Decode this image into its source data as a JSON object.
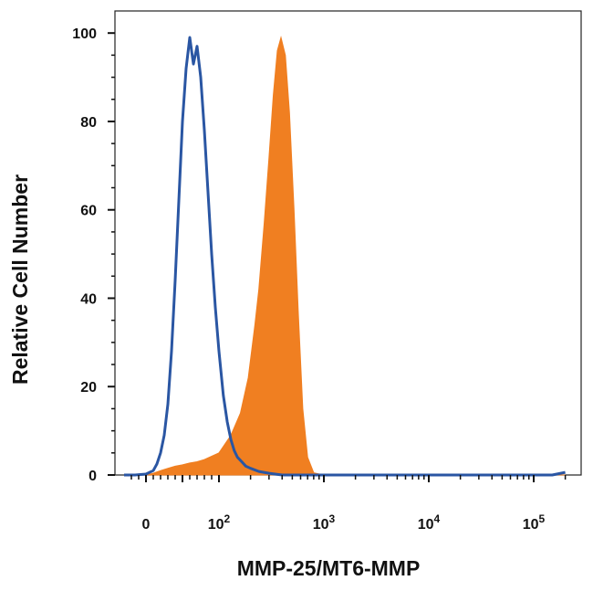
{
  "chart_data": {
    "type": "area",
    "title": "",
    "xlabel": "MMP-25/MT6-MMP",
    "ylabel": "Relative Cell Number",
    "x_scale": "biexponential",
    "xlim": [
      -30,
      200000
    ],
    "ylim": [
      0,
      105
    ],
    "y_ticks": [
      0,
      20,
      40,
      60,
      80,
      100
    ],
    "x_ticks": [
      {
        "value": 0,
        "label": "0",
        "exp": ""
      },
      {
        "value": 100,
        "label": "10",
        "exp": "2"
      },
      {
        "value": 1000,
        "label": "10",
        "exp": "3"
      },
      {
        "value": 10000,
        "label": "10",
        "exp": "4"
      },
      {
        "value": 100000,
        "label": "10",
        "exp": "5"
      }
    ],
    "grid": false,
    "legend": "none",
    "series": [
      {
        "style": "filled",
        "color": "#f07f21",
        "x": [
          -30,
          0,
          10,
          20,
          30,
          40,
          50,
          60,
          70,
          80,
          100,
          130,
          160,
          190,
          220,
          240,
          270,
          300,
          330,
          360,
          390,
          430,
          470,
          520,
          570,
          630,
          700,
          800,
          1000,
          10000,
          100000,
          200000
        ],
        "y": [
          0,
          0,
          0.4,
          1,
          1.5,
          2,
          2.3,
          2.7,
          3,
          3.5,
          5,
          9,
          14,
          22,
          34,
          42,
          57,
          72,
          86,
          96,
          99,
          95,
          82,
          60,
          37,
          15,
          4,
          0.5,
          0,
          0,
          0,
          0
        ]
      },
      {
        "style": "outline",
        "color": "#2a56a3",
        "x": [
          -30,
          -15,
          0,
          10,
          15,
          20,
          25,
          30,
          35,
          40,
          45,
          50,
          55,
          60,
          65,
          70,
          75,
          80,
          85,
          90,
          95,
          100,
          110,
          120,
          130,
          140,
          150,
          165,
          180,
          200,
          240,
          300,
          400,
          1000,
          10000,
          100000,
          150000,
          200000
        ],
        "y": [
          0,
          0,
          0.2,
          1,
          2.5,
          5,
          9,
          16,
          28,
          44,
          62,
          80,
          92,
          99,
          93,
          97,
          90,
          78,
          64,
          50,
          38,
          28,
          18,
          12,
          8,
          5.5,
          4,
          3,
          2,
          1.5,
          0.8,
          0.4,
          0,
          0,
          0,
          0,
          0,
          0.6
        ]
      }
    ]
  }
}
